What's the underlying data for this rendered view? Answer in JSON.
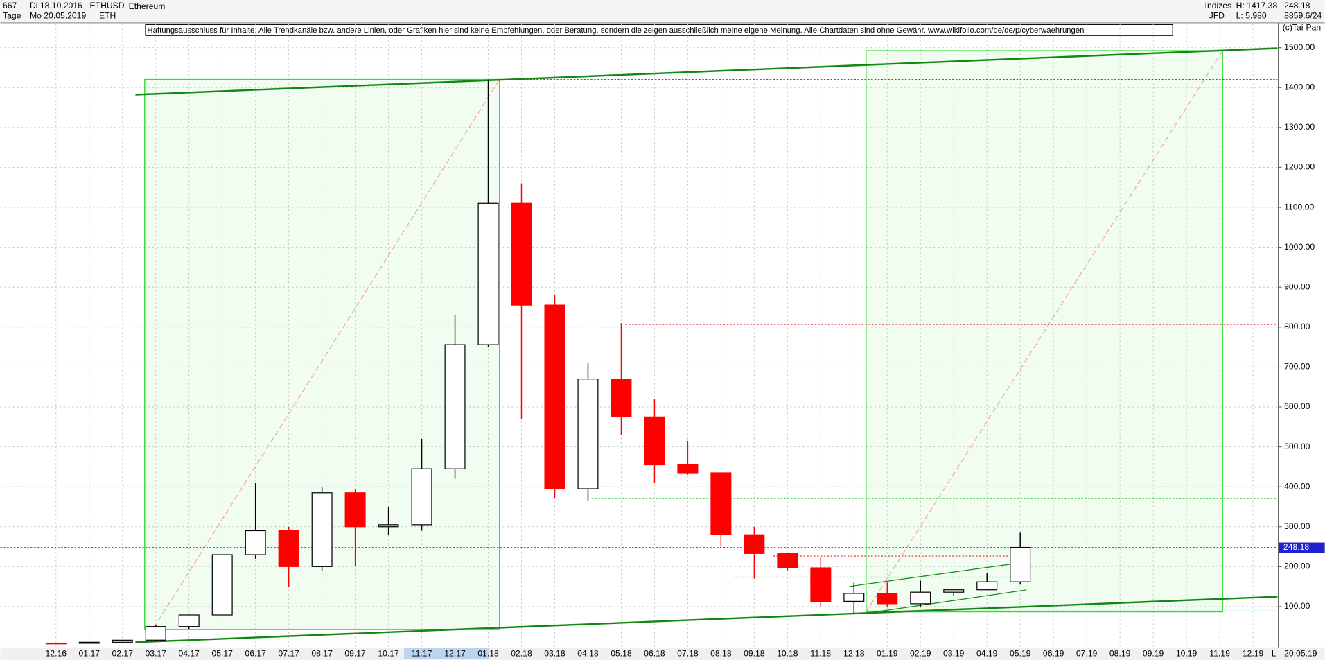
{
  "header": {
    "count": "667",
    "start": "Di 18.10.2016",
    "period": "Tage",
    "end": "Mo 20.05.2019",
    "symbol": "ETHUSD",
    "short": "ETH",
    "name": "Ethereum",
    "group": "Indizes",
    "source": "JFD",
    "high": "H: 1417.38",
    "low": "L: 5.980",
    "last": "248.18",
    "extra": "8859.6/24",
    "copyright": "(c)Tai-Pan",
    "disclaimer": "Haftungsausschluss für Inhalte: Alle Trendkanäle bzw. andere Linien, oder Grafiken hier sind keine Empfehlungen, oder Beratung, sondern die zeigen ausschließlich meine eigene Meinung. Alle Chartdaten sind ohne Gewähr.  www.wikifolio.com/de/de/p/cyberwaehrungen"
  },
  "footer": {
    "date": "20.05.19",
    "mode": "L"
  },
  "chart_data": {
    "type": "candlestick",
    "categories": [
      "12.16",
      "01.17",
      "02.17",
      "03.17",
      "04.17",
      "05.17",
      "06.17",
      "07.17",
      "08.17",
      "09.17",
      "10.17",
      "11.17",
      "12.17",
      "01.18",
      "02.18",
      "03.18",
      "04.18",
      "05.18",
      "06.18",
      "07.18",
      "08.18",
      "09.18",
      "10.18",
      "11.18",
      "12.18",
      "01.19",
      "02.19",
      "03.19",
      "04.19",
      "05.19",
      "06.19",
      "07.19",
      "08.19",
      "09.19",
      "10.19",
      "11.19",
      "12.19"
    ],
    "open": [
      8.6,
      8,
      10.7,
      16,
      50,
      79,
      230,
      290,
      200,
      385,
      300,
      305,
      445,
      756,
      1110,
      855,
      395,
      670,
      575,
      455,
      435,
      280,
      233,
      197,
      113,
      133,
      107,
      136,
      142,
      162,
      null,
      null,
      null,
      null,
      null,
      null,
      null
    ],
    "high": [
      8.9,
      11.5,
      16,
      53,
      80,
      230,
      410,
      300,
      400,
      395,
      350,
      520,
      830,
      1420,
      1160,
      880,
      710,
      810,
      620,
      515,
      435,
      300,
      235,
      225,
      160,
      160,
      165,
      145,
      185,
      285,
      null,
      null,
      null,
      null,
      null,
      null,
      null
    ],
    "low": [
      6,
      8,
      10.5,
      15,
      43,
      78,
      220,
      150,
      190,
      200,
      280,
      290,
      420,
      750,
      570,
      370,
      365,
      530,
      410,
      430,
      250,
      170,
      190,
      100,
      82,
      100,
      100,
      127,
      150,
      155,
      null,
      null,
      null,
      null,
      null,
      null,
      null
    ],
    "close": [
      8,
      10.7,
      15.9,
      50,
      79,
      230,
      290,
      200,
      385,
      300,
      305,
      445,
      756,
      1110,
      855,
      395,
      670,
      575,
      455,
      435,
      280,
      233,
      197,
      113,
      133,
      107,
      136,
      142,
      162,
      248.18,
      null,
      null,
      null,
      null,
      null,
      null,
      null
    ],
    "up_color": "#000000",
    "down_color": "#ff0000",
    "ylim": [
      0,
      1560
    ],
    "yticks": [
      {
        "value": 100,
        "label": "100.00"
      },
      {
        "value": 200,
        "label": "200.00"
      },
      {
        "value": 300,
        "label": "300.00"
      },
      {
        "value": 400,
        "label": "400.00"
      },
      {
        "value": 500,
        "label": "500.00"
      },
      {
        "value": 600,
        "label": "600.00"
      },
      {
        "value": 700,
        "label": "700.00"
      },
      {
        "value": 800,
        "label": "800.00"
      },
      {
        "value": 900,
        "label": "900.00"
      },
      {
        "value": 1000,
        "label": "1000.00"
      },
      {
        "value": 1100,
        "label": "1100.00"
      },
      {
        "value": 1200,
        "label": "1200.00"
      },
      {
        "value": 1300,
        "label": "1300.00"
      },
      {
        "value": 1400,
        "label": "1400.00"
      },
      {
        "value": 1500,
        "label": "1500.00"
      }
    ],
    "grid": true
  }
}
